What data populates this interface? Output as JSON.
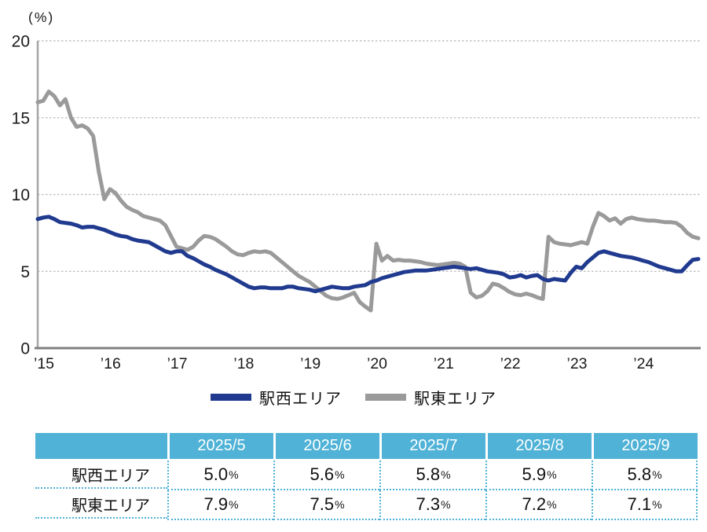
{
  "unit_label": "(%)",
  "chart_data": {
    "type": "line",
    "title": "",
    "xlabel": "",
    "ylabel": "(%)",
    "ylim": [
      0,
      20
    ],
    "y_ticks": [
      0,
      5,
      10,
      15,
      20
    ],
    "grid": "horizontal-dotted",
    "x_start": "2015/1",
    "x_end": "2024/12",
    "x_tick_labels": [
      "’15",
      "’16",
      "’17",
      "’18",
      "’19",
      "’20",
      "’21",
      "’22",
      "’23",
      "’24"
    ],
    "legend_position": "bottom",
    "series": [
      {
        "name": "駅東エリア",
        "color": "#9a9a9a",
        "values": [
          16.0,
          16.1,
          16.7,
          16.4,
          15.8,
          16.2,
          15.0,
          14.4,
          14.5,
          14.3,
          13.8,
          11.5,
          9.7,
          10.35,
          10.1,
          9.6,
          9.2,
          9.0,
          8.85,
          8.6,
          8.5,
          8.4,
          8.3,
          8.0,
          7.3,
          6.6,
          6.5,
          6.4,
          6.6,
          7.0,
          7.3,
          7.25,
          7.1,
          6.85,
          6.6,
          6.3,
          6.1,
          6.05,
          6.2,
          6.3,
          6.25,
          6.3,
          6.2,
          5.9,
          5.6,
          5.3,
          5.0,
          4.7,
          4.5,
          4.3,
          4.0,
          3.7,
          3.4,
          3.25,
          3.2,
          3.3,
          3.45,
          3.6,
          3.0,
          2.7,
          2.45,
          6.8,
          5.7,
          6.0,
          5.7,
          5.75,
          5.7,
          5.7,
          5.65,
          5.6,
          5.5,
          5.45,
          5.4,
          5.45,
          5.5,
          5.55,
          5.5,
          5.3,
          3.6,
          3.3,
          3.4,
          3.7,
          4.2,
          4.1,
          3.9,
          3.65,
          3.5,
          3.45,
          3.55,
          3.45,
          3.3,
          3.2,
          7.25,
          6.9,
          6.8,
          6.75,
          6.7,
          6.8,
          6.9,
          6.8,
          7.9,
          8.8,
          8.6,
          8.3,
          8.45,
          8.1,
          8.4,
          8.5,
          8.4,
          8.35,
          8.3,
          8.3,
          8.25,
          8.2,
          8.2,
          8.15,
          7.9,
          7.5,
          7.25,
          7.15
        ]
      },
      {
        "name": "駅西エリア",
        "color": "#203a8f",
        "values": [
          8.4,
          8.5,
          8.55,
          8.4,
          8.2,
          8.15,
          8.1,
          8.0,
          7.85,
          7.9,
          7.9,
          7.8,
          7.7,
          7.55,
          7.4,
          7.3,
          7.25,
          7.1,
          7.0,
          6.95,
          6.9,
          6.7,
          6.5,
          6.3,
          6.2,
          6.3,
          6.3,
          6.0,
          5.85,
          5.65,
          5.45,
          5.3,
          5.1,
          4.95,
          4.8,
          4.6,
          4.4,
          4.2,
          4.0,
          3.9,
          3.95,
          3.95,
          3.9,
          3.9,
          3.9,
          4.0,
          4.0,
          3.9,
          3.85,
          3.8,
          3.7,
          3.8,
          3.9,
          4.0,
          3.95,
          3.9,
          3.9,
          4.0,
          4.05,
          4.1,
          4.3,
          4.4,
          4.55,
          4.65,
          4.75,
          4.85,
          4.95,
          5.0,
          5.05,
          5.05,
          5.05,
          5.1,
          5.15,
          5.2,
          5.25,
          5.3,
          5.25,
          5.2,
          5.15,
          5.2,
          5.1,
          5.0,
          4.95,
          4.9,
          4.8,
          4.6,
          4.65,
          4.75,
          4.6,
          4.7,
          4.75,
          4.5,
          4.4,
          4.5,
          4.45,
          4.4,
          4.9,
          5.3,
          5.2,
          5.6,
          5.9,
          6.2,
          6.3,
          6.2,
          6.1,
          6.0,
          5.95,
          5.9,
          5.8,
          5.7,
          5.6,
          5.45,
          5.3,
          5.2,
          5.1,
          5.0,
          5.0,
          5.4,
          5.75,
          5.8
        ]
      }
    ],
    "axis_colors": {
      "left_axis": "#a6a6a6",
      "bottom_axis": "#7f7f7f",
      "gridline": "#c0c0c0",
      "tick_text": "#1a1a1a"
    }
  },
  "legend": {
    "items": [
      {
        "label": "駅西エリア",
        "color": "#203a8f"
      },
      {
        "label": "駅東エリア",
        "color": "#9a9a9a"
      }
    ]
  },
  "table": {
    "header_bg": "#4fb2d6",
    "border_color": "#4fb2d6",
    "columns": [
      "",
      "2025/5",
      "2025/6",
      "2025/7",
      "2025/8",
      "2025/9"
    ],
    "percent_suffix": "%",
    "rows": [
      {
        "label": "駅西エリア",
        "values": [
          "5.0",
          "5.6",
          "5.8",
          "5.9",
          "5.8"
        ]
      },
      {
        "label": "駅東エリア",
        "values": [
          "7.9",
          "7.5",
          "7.3",
          "7.2",
          "7.1"
        ]
      }
    ]
  }
}
